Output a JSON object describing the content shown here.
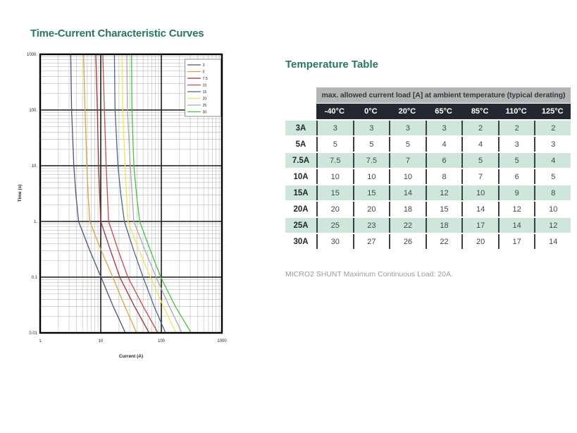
{
  "style": {
    "accent_green": "#27795a",
    "banner_gray": "#b3b6b4",
    "header_dark": "#232830",
    "row_green": "#cfe7db",
    "grid_minor": "#b5b5b5",
    "grid_major": "#1c1c1c",
    "plot_border": "#000000"
  },
  "chart_data": [
    {
      "type": "line",
      "title": "Time-Current Characteristic Curves",
      "xlabel": "Current (A)",
      "ylabel": "Time (s)",
      "x_scale": "log",
      "y_scale": "log",
      "xlim": [
        1,
        1000
      ],
      "ylim": [
        0.01,
        1000
      ],
      "x_tick_labels": [
        "1",
        "10",
        "100",
        "1000"
      ],
      "y_tick_labels": [
        "1000.",
        "100.",
        "10.",
        "1.",
        "0.1",
        "0.01"
      ],
      "grid": true,
      "legend_position": "top-right-inside",
      "series": [
        {
          "name": "3",
          "color": "#4a5477",
          "points_current_time": [
            [
              3.2,
              1000
            ],
            [
              3.3,
              100
            ],
            [
              3.6,
              10
            ],
            [
              3.9,
              3
            ],
            [
              4.3,
              1
            ],
            [
              6.6,
              0.3
            ],
            [
              10.1,
              0.1
            ],
            [
              16,
              0.03
            ],
            [
              25.5,
              0.01
            ]
          ]
        },
        {
          "name": "5",
          "color": "#dfa13a",
          "points_current_time": [
            [
              5.2,
              1000
            ],
            [
              5.5,
              100
            ],
            [
              5.9,
              10
            ],
            [
              6.2,
              3
            ],
            [
              6.6,
              1
            ],
            [
              10.2,
              0.3
            ],
            [
              15.8,
              0.1
            ],
            [
              25,
              0.03
            ],
            [
              39,
              0.01
            ]
          ]
        },
        {
          "name": "7.5",
          "color": "#9c3136",
          "points_current_time": [
            [
              8.3,
              1000
            ],
            [
              8.8,
              100
            ],
            [
              9.2,
              10
            ],
            [
              9.6,
              3
            ],
            [
              10,
              1
            ],
            [
              14.5,
              0.3
            ],
            [
              20.6,
              0.1
            ],
            [
              36,
              0.03
            ],
            [
              63,
              0.01
            ]
          ]
        },
        {
          "name": "10",
          "color": "#c94747",
          "points_current_time": [
            [
              10.8,
              1000
            ],
            [
              11.5,
              100
            ],
            [
              12.3,
              10
            ],
            [
              12.9,
              3
            ],
            [
              13.5,
              1
            ],
            [
              19.5,
              0.3
            ],
            [
              28,
              0.1
            ],
            [
              50,
              0.03
            ],
            [
              88,
              0.01
            ]
          ]
        },
        {
          "name": "15",
          "color": "#49688c",
          "points_current_time": [
            [
              16.8,
              1000
            ],
            [
              17.2,
              100
            ],
            [
              19.2,
              10
            ],
            [
              21.5,
              3
            ],
            [
              24.5,
              1
            ],
            [
              35,
              0.3
            ],
            [
              50,
              0.1
            ],
            [
              76,
              0.03
            ],
            [
              117,
              0.01
            ]
          ]
        },
        {
          "name": "20",
          "color": "#efe45a",
          "points_current_time": [
            [
              22.5,
              1000
            ],
            [
              23.1,
              100
            ],
            [
              25.1,
              10
            ],
            [
              26.6,
              3
            ],
            [
              28.2,
              1
            ],
            [
              43,
              0.3
            ],
            [
              66,
              0.1
            ],
            [
              108,
              0.03
            ],
            [
              175,
              0.01
            ]
          ]
        },
        {
          "name": "25",
          "color": "#a9a9a9",
          "points_current_time": [
            [
              26.9,
              1000
            ],
            [
              27.5,
              100
            ],
            [
              30.8,
              10
            ],
            [
              33,
              3
            ],
            [
              35.2,
              1
            ],
            [
              54,
              0.3
            ],
            [
              82,
              0.1
            ],
            [
              135,
              0.03
            ],
            [
              219,
              0.01
            ]
          ]
        },
        {
          "name": "30",
          "color": "#3fc53f",
          "points_current_time": [
            [
              32.2,
              1000
            ],
            [
              32.7,
              100
            ],
            [
              35.2,
              10
            ],
            [
              39,
              3
            ],
            [
              44,
              1
            ],
            [
              66,
              0.3
            ],
            [
              98,
              0.1
            ],
            [
              170,
              0.03
            ],
            [
              310,
              0.01
            ]
          ]
        }
      ]
    },
    {
      "type": "table",
      "title": "Temperature Table",
      "header": "max. allowed current load [A] at ambient temperature (typical derating)",
      "columns": [
        "-40°C",
        "0°C",
        "20°C",
        "65°C",
        "85°C",
        "110°C",
        "125°C"
      ],
      "rows": [
        {
          "label": "3A",
          "values": [
            "3",
            "3",
            "3",
            "3",
            "2",
            "2",
            "2"
          ]
        },
        {
          "label": "5A",
          "values": [
            "5",
            "5",
            "5",
            "4",
            "4",
            "3",
            "3"
          ]
        },
        {
          "label": "7.5A",
          "values": [
            "7.5",
            "7.5",
            "7",
            "6",
            "5",
            "5",
            "4"
          ]
        },
        {
          "label": "10A",
          "values": [
            "10",
            "10",
            "10",
            "8",
            "7",
            "6",
            "5"
          ]
        },
        {
          "label": "15A",
          "values": [
            "15",
            "15",
            "14",
            "12",
            "10",
            "9",
            "8"
          ]
        },
        {
          "label": "20A",
          "values": [
            "20",
            "20",
            "18",
            "15",
            "14",
            "12",
            "10"
          ]
        },
        {
          "label": "25A",
          "values": [
            "25",
            "23",
            "22",
            "18",
            "17",
            "14",
            "12"
          ]
        },
        {
          "label": "30A",
          "values": [
            "30",
            "27",
            "26",
            "22",
            "20",
            "17",
            "14"
          ]
        }
      ],
      "footnote": "MICRO2 SHUNT Maximum Continuous Load: 20A."
    }
  ]
}
